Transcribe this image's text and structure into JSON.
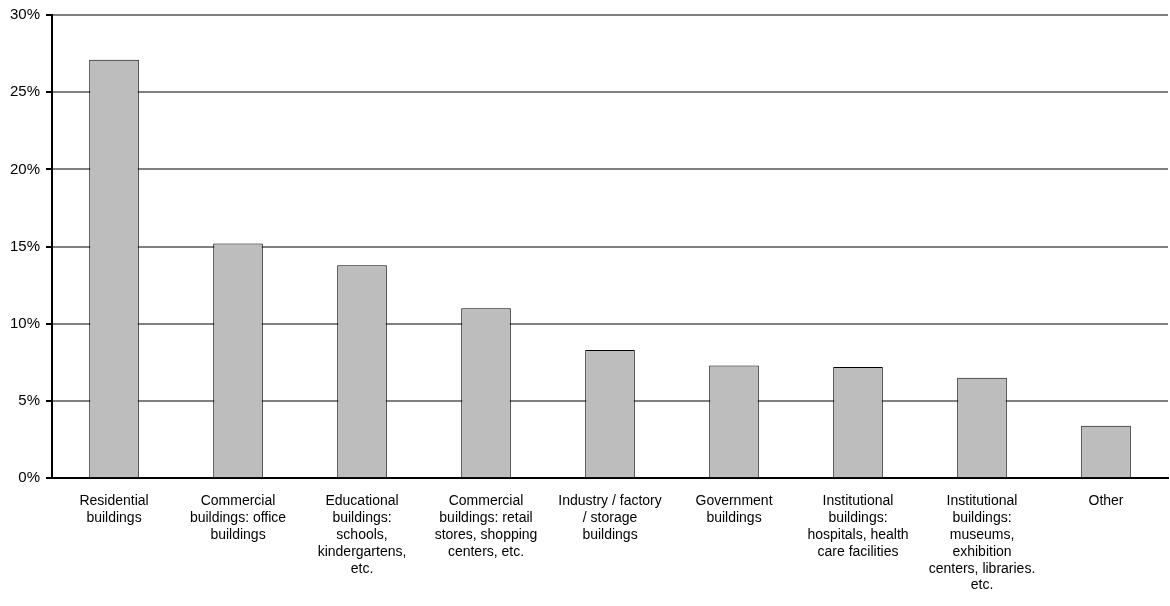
{
  "chart_data": {
    "type": "bar",
    "categories": [
      "Residential buildings",
      "Commercial buildings: office buildings",
      "Educational buildings: schools, kindergartens, etc.",
      "Commercial buildings: retail stores, shopping centers, etc.",
      "Industry / factory / storage buildings",
      "Government buildings",
      "Institutional buildings: hospitals, health care facilities",
      "Institutional buildings: museums, exhibition centers, libraries. etc.",
      "Other"
    ],
    "values": [
      27.1,
      15.2,
      13.8,
      11.0,
      8.3,
      7.3,
      7.2,
      6.5,
      3.4
    ],
    "color": "#bdbdbd",
    "ylim": [
      0,
      30
    ],
    "yticks": [
      {
        "value": 0,
        "label": "0%"
      },
      {
        "value": 5,
        "label": "5%"
      },
      {
        "value": 10,
        "label": "10%"
      },
      {
        "value": 15,
        "label": "15%"
      },
      {
        "value": 20,
        "label": "20%"
      },
      {
        "value": 25,
        "label": "25%"
      },
      {
        "value": 30,
        "label": "30%"
      }
    ],
    "grid": "y",
    "legend": false
  }
}
